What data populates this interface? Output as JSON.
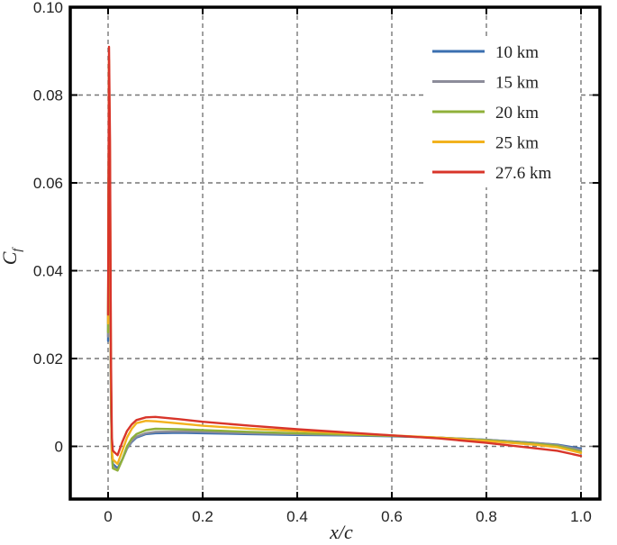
{
  "chart_data": {
    "type": "line",
    "xlabel": "x/c",
    "ylabel": "C_f",
    "xlim": [
      -0.08,
      1.04
    ],
    "ylim": [
      -0.012,
      0.1
    ],
    "xticks": [
      0.0,
      0.2,
      0.4,
      0.6,
      0.8,
      1.0
    ],
    "xtick_labels": [
      "0",
      "0.2",
      "0.4",
      "0.6",
      "0.8",
      "1.0"
    ],
    "yticks": [
      0.0,
      0.02,
      0.04,
      0.06,
      0.08,
      0.1
    ],
    "ytick_labels": [
      "0",
      "0.02",
      "0.04",
      "0.06",
      "0.08",
      "0.10"
    ],
    "grid": true,
    "legend_position": "top-right",
    "series": [
      {
        "name": "10 km",
        "color": "#3b6fb0",
        "x": [
          0.0,
          0.002,
          0.004,
          0.006,
          0.008,
          0.01,
          0.02,
          0.03,
          0.04,
          0.05,
          0.06,
          0.08,
          0.1,
          0.15,
          0.2,
          0.3,
          0.4,
          0.5,
          0.6,
          0.7,
          0.8,
          0.9,
          0.95,
          1.0
        ],
        "y": [
          0.024,
          0.085,
          0.05,
          0.01,
          -0.002,
          -0.004,
          -0.005,
          -0.003,
          -0.0005,
          0.001,
          0.002,
          0.0028,
          0.003,
          0.0031,
          0.003,
          0.0028,
          0.0026,
          0.0025,
          0.0023,
          0.002,
          0.0015,
          0.0008,
          0.0004,
          -0.0005
        ]
      },
      {
        "name": "15 km",
        "color": "#8c8c9a",
        "x": [
          0.0,
          0.002,
          0.004,
          0.006,
          0.008,
          0.01,
          0.02,
          0.03,
          0.04,
          0.05,
          0.06,
          0.08,
          0.1,
          0.15,
          0.2,
          0.3,
          0.4,
          0.5,
          0.6,
          0.7,
          0.8,
          0.9,
          0.95,
          1.0
        ],
        "y": [
          0.025,
          0.086,
          0.05,
          0.01,
          -0.002,
          -0.0045,
          -0.0055,
          -0.003,
          -0.0005,
          0.0012,
          0.0022,
          0.003,
          0.0033,
          0.0034,
          0.0033,
          0.003,
          0.0028,
          0.0026,
          0.0024,
          0.002,
          0.0015,
          0.0008,
          0.0003,
          -0.0008
        ]
      },
      {
        "name": "20 km",
        "color": "#8fb03a",
        "x": [
          0.0,
          0.002,
          0.004,
          0.006,
          0.008,
          0.01,
          0.02,
          0.03,
          0.04,
          0.05,
          0.06,
          0.08,
          0.1,
          0.15,
          0.2,
          0.3,
          0.4,
          0.5,
          0.6,
          0.7,
          0.8,
          0.9,
          0.95,
          1.0
        ],
        "y": [
          0.026,
          0.087,
          0.055,
          0.012,
          -0.002,
          -0.005,
          -0.0055,
          -0.003,
          0.0,
          0.0018,
          0.0028,
          0.0037,
          0.004,
          0.0039,
          0.0037,
          0.0033,
          0.003,
          0.0027,
          0.0024,
          0.002,
          0.0014,
          0.0006,
          0.0001,
          -0.0012
        ]
      },
      {
        "name": "25 km",
        "color": "#f2b21e",
        "x": [
          0.0,
          0.002,
          0.004,
          0.006,
          0.008,
          0.01,
          0.02,
          0.03,
          0.04,
          0.05,
          0.06,
          0.08,
          0.1,
          0.15,
          0.2,
          0.3,
          0.4,
          0.5,
          0.6,
          0.7,
          0.8,
          0.9,
          0.95,
          1.0
        ],
        "y": [
          0.028,
          0.088,
          0.065,
          0.015,
          -0.001,
          -0.003,
          -0.004,
          -0.001,
          0.002,
          0.004,
          0.0053,
          0.0058,
          0.0057,
          0.0052,
          0.0047,
          0.004,
          0.0035,
          0.003,
          0.0025,
          0.002,
          0.0012,
          0.0004,
          -0.0002,
          -0.0015
        ]
      },
      {
        "name": "27.6 km",
        "color": "#d8352a",
        "x": [
          0.0,
          0.002,
          0.004,
          0.006,
          0.008,
          0.01,
          0.02,
          0.03,
          0.04,
          0.05,
          0.06,
          0.08,
          0.1,
          0.15,
          0.2,
          0.3,
          0.4,
          0.5,
          0.6,
          0.7,
          0.8,
          0.9,
          0.95,
          1.0
        ],
        "y": [
          0.03,
          0.091,
          0.07,
          0.02,
          0.002,
          -0.001,
          -0.002,
          0.001,
          0.0035,
          0.005,
          0.006,
          0.0066,
          0.0067,
          0.0062,
          0.0056,
          0.0047,
          0.0039,
          0.0032,
          0.0025,
          0.0018,
          0.0008,
          -0.0004,
          -0.001,
          -0.0022
        ]
      }
    ]
  }
}
